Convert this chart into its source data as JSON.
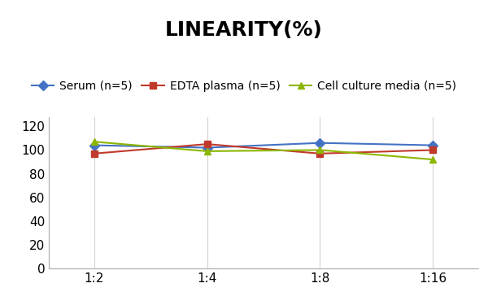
{
  "title": "LINEARITY(%)",
  "x_labels": [
    "1:2",
    "1:4",
    "1:8",
    "1:16"
  ],
  "series": [
    {
      "label": "Serum (n=5)",
      "color": "#4472C4",
      "marker": "D",
      "values": [
        104,
        102,
        106,
        104
      ]
    },
    {
      "label": "EDTA plasma (n=5)",
      "color": "#C0392B",
      "marker": "s",
      "values": [
        97,
        105,
        97,
        100
      ]
    },
    {
      "label": "Cell culture media (n=5)",
      "color": "#8DB600",
      "marker": "^",
      "values": [
        107,
        99,
        100,
        92
      ]
    }
  ],
  "ylim": [
    0,
    128
  ],
  "yticks": [
    0,
    20,
    40,
    60,
    80,
    100,
    120
  ],
  "title_fontsize": 18,
  "legend_fontsize": 10,
  "tick_fontsize": 11,
  "background_color": "#FFFFFF",
  "grid_color": "#D3D3D3"
}
